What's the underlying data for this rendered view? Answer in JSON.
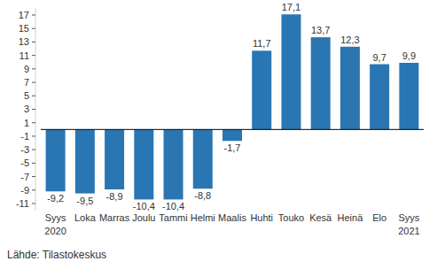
{
  "chart_data": {
    "type": "bar",
    "categories": [
      "Syys 2020",
      "Loka",
      "Marras",
      "Joulu",
      "Tammi",
      "Helmi",
      "Maalis",
      "Huhti",
      "Touko",
      "Kesä",
      "Heinä",
      "Elo",
      "Syys 2021"
    ],
    "values": [
      -9.2,
      -9.5,
      -8.9,
      -10.4,
      -10.4,
      -8.8,
      -1.7,
      11.7,
      17.1,
      13.7,
      12.3,
      9.7,
      9.9
    ],
    "value_labels": [
      "-9,2",
      "-9,5",
      "-8,9",
      "-10,4",
      "-10,4",
      "-8,8",
      "-1,7",
      "11,7",
      "17,1",
      "13,7",
      "12,3",
      "9,7",
      "9,9"
    ],
    "color": "#2a76b3",
    "ylim": [
      -12,
      18
    ],
    "yticks": [
      -11,
      -9,
      -7,
      -5,
      -3,
      -1,
      1,
      3,
      5,
      7,
      9,
      11,
      13,
      15,
      17
    ],
    "grid": false,
    "data_labels": true,
    "source": "Lähde: Tilastokeskus"
  }
}
